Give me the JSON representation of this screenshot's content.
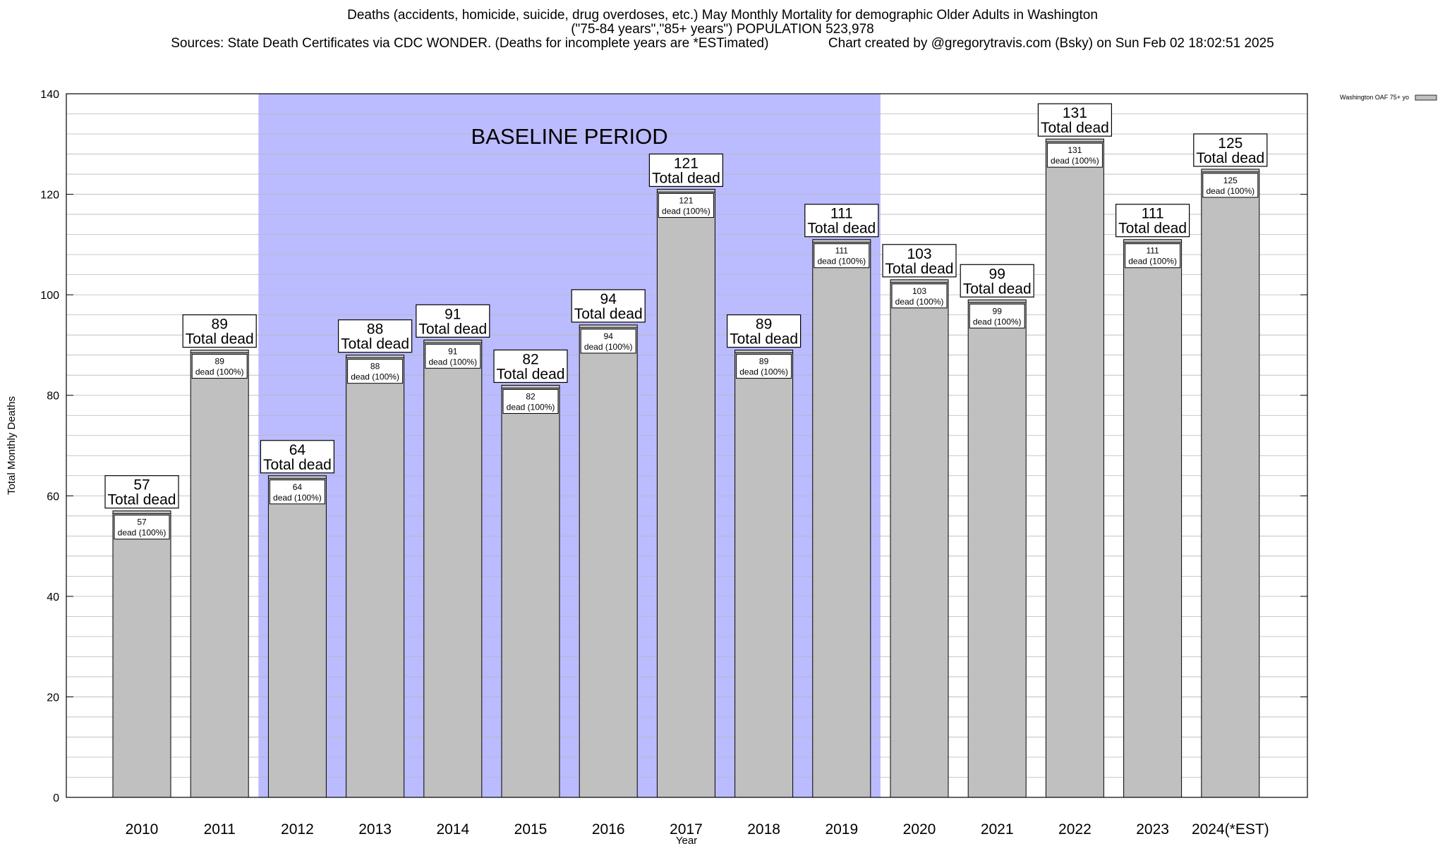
{
  "title": {
    "line1": "Deaths (accidents, homicide, suicide, drug overdoses, etc.) May Monthly Mortality for demographic Older Adults in Washington",
    "line2": "(\"75-84 years\",\"85+ years\") POPULATION 523,978",
    "line3": "Sources: State Death Certificates via CDC WONDER. (Deaths for incomplete years are *ESTimated)                Chart created by @gregorytravis.com (Bsky) on Sun Feb 02 18:02:51 2025"
  },
  "chart_data": {
    "type": "bar",
    "xlabel": "Year",
    "ylabel": "Total Monthly Deaths",
    "ylim": [
      0,
      140
    ],
    "y_ticks": [
      0,
      20,
      40,
      60,
      80,
      100,
      120,
      140
    ],
    "categories": [
      "2010",
      "2011",
      "2012",
      "2013",
      "2014",
      "2015",
      "2016",
      "2017",
      "2018",
      "2019",
      "2020",
      "2021",
      "2022",
      "2023",
      "2024(*EST)"
    ],
    "series": [
      {
        "name": "Washington OAF 75+ yo",
        "values": [
          57,
          89,
          64,
          88,
          91,
          82,
          94,
          121,
          89,
          111,
          103,
          99,
          131,
          111,
          125
        ]
      }
    ],
    "bar_color": "#c0c0c0",
    "top_label_suffix": "Total dead",
    "inner_label_suffix": "dead (100%)",
    "baseline": {
      "label": "BASELINE PERIOD",
      "from": "2012",
      "to": "2019",
      "color": "#bbbbff"
    },
    "grid": true,
    "legend_position": "top-right"
  }
}
